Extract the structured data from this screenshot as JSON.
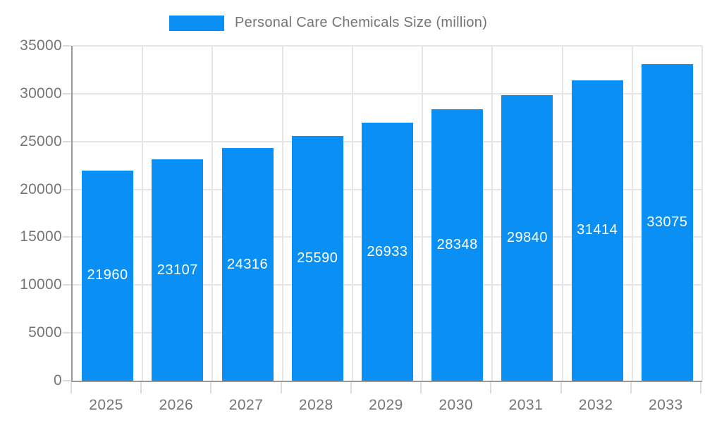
{
  "chart_data": {
    "type": "bar",
    "title": "",
    "xlabel": "",
    "ylabel": "",
    "legend": [
      {
        "label": "Personal Care Chemicals Size (million)"
      }
    ],
    "legend_position": "top-center",
    "categories": [
      "2025",
      "2026",
      "2027",
      "2028",
      "2029",
      "2030",
      "2031",
      "2032",
      "2033"
    ],
    "values": [
      21960,
      23107,
      24316,
      25590,
      26933,
      28348,
      29840,
      31414,
      33075
    ],
    "value_labels_position": "inside-center",
    "ylim": [
      0,
      35000
    ],
    "ytick_step": 5000,
    "yticks": [
      0,
      5000,
      10000,
      15000,
      20000,
      25000,
      30000,
      35000
    ],
    "grid": true
  },
  "colors": {
    "bar": "#0a90f4",
    "bar_label_text": "#ffffff",
    "axis_line": "#9a9a9a",
    "gridline": "#e6e6e6",
    "tick_mark": "#dcdcdc",
    "axis_text": "#757575",
    "legend_text": "#757575",
    "background": "#ffffff"
  }
}
